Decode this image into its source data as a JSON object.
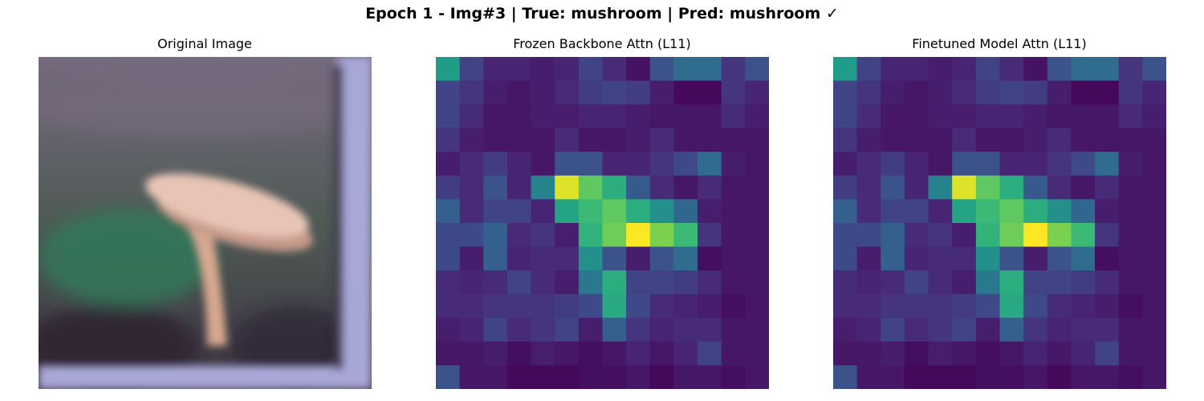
{
  "figure": {
    "suptitle": "Epoch 1 - Img#3 | True: mushroom | Pred: mushroom ✓"
  },
  "chart_data": [
    {
      "type": "image",
      "title": "Original Image",
      "axis": "off",
      "colors": {
        "background_top": "#766b7f",
        "background_mid": "#4f5a55",
        "background_bottom": "#3e3542",
        "frame": "#a8a8d8",
        "frame_edge": "#c0c0f0",
        "cap": "#e8c4b6",
        "cap_shadow": "#c79a8a",
        "stem": "#d8a890",
        "foliage": "#2f7a5a",
        "dark": "#2a2230"
      }
    },
    {
      "type": "heatmap",
      "title": "Frozen Backbone Attn (L11)",
      "colormap": "viridis",
      "axis": "off",
      "rows": 14,
      "cols": 14,
      "values": [
        [
          0.55,
          0.2,
          0.1,
          0.1,
          0.08,
          0.1,
          0.2,
          0.12,
          0.05,
          0.25,
          0.35,
          0.35,
          0.15,
          0.25
        ],
        [
          0.2,
          0.15,
          0.08,
          0.06,
          0.08,
          0.12,
          0.18,
          0.2,
          0.18,
          0.08,
          0.02,
          0.02,
          0.15,
          0.1
        ],
        [
          0.2,
          0.12,
          0.06,
          0.06,
          0.08,
          0.08,
          0.1,
          0.1,
          0.08,
          0.06,
          0.06,
          0.06,
          0.12,
          0.08
        ],
        [
          0.15,
          0.08,
          0.06,
          0.06,
          0.06,
          0.12,
          0.06,
          0.06,
          0.08,
          0.12,
          0.06,
          0.06,
          0.06,
          0.06
        ],
        [
          0.08,
          0.12,
          0.18,
          0.1,
          0.06,
          0.25,
          0.25,
          0.1,
          0.1,
          0.15,
          0.22,
          0.35,
          0.08,
          0.06
        ],
        [
          0.18,
          0.12,
          0.25,
          0.1,
          0.45,
          0.95,
          0.75,
          0.62,
          0.28,
          0.12,
          0.06,
          0.12,
          0.06,
          0.06
        ],
        [
          0.3,
          0.12,
          0.2,
          0.2,
          0.1,
          0.58,
          0.68,
          0.75,
          0.62,
          0.5,
          0.33,
          0.08,
          0.06,
          0.06
        ],
        [
          0.22,
          0.22,
          0.3,
          0.12,
          0.15,
          0.08,
          0.65,
          0.78,
          1.0,
          0.8,
          0.68,
          0.15,
          0.06,
          0.06
        ],
        [
          0.22,
          0.08,
          0.3,
          0.1,
          0.12,
          0.12,
          0.5,
          0.25,
          0.08,
          0.25,
          0.35,
          0.04,
          0.06,
          0.06
        ],
        [
          0.12,
          0.1,
          0.12,
          0.2,
          0.12,
          0.08,
          0.4,
          0.62,
          0.2,
          0.2,
          0.18,
          0.12,
          0.06,
          0.06
        ],
        [
          0.12,
          0.12,
          0.15,
          0.15,
          0.15,
          0.18,
          0.22,
          0.6,
          0.22,
          0.12,
          0.1,
          0.08,
          0.04,
          0.06
        ],
        [
          0.08,
          0.1,
          0.2,
          0.12,
          0.15,
          0.2,
          0.08,
          0.3,
          0.15,
          0.1,
          0.12,
          0.12,
          0.06,
          0.06
        ],
        [
          0.06,
          0.06,
          0.08,
          0.04,
          0.08,
          0.06,
          0.04,
          0.06,
          0.1,
          0.06,
          0.1,
          0.2,
          0.06,
          0.06
        ],
        [
          0.25,
          0.06,
          0.06,
          0.02,
          0.02,
          0.02,
          0.04,
          0.04,
          0.06,
          0.02,
          0.06,
          0.06,
          0.04,
          0.06
        ]
      ]
    },
    {
      "type": "heatmap",
      "title": "Finetuned Model Attn (L11)",
      "colormap": "viridis",
      "axis": "off",
      "rows": 14,
      "cols": 14,
      "values": [
        [
          0.55,
          0.2,
          0.1,
          0.1,
          0.08,
          0.1,
          0.2,
          0.12,
          0.05,
          0.25,
          0.35,
          0.35,
          0.15,
          0.25
        ],
        [
          0.2,
          0.15,
          0.08,
          0.06,
          0.08,
          0.12,
          0.18,
          0.2,
          0.18,
          0.08,
          0.02,
          0.02,
          0.15,
          0.1
        ],
        [
          0.2,
          0.12,
          0.06,
          0.06,
          0.08,
          0.08,
          0.1,
          0.1,
          0.08,
          0.06,
          0.06,
          0.06,
          0.12,
          0.08
        ],
        [
          0.15,
          0.08,
          0.06,
          0.06,
          0.06,
          0.12,
          0.06,
          0.06,
          0.08,
          0.12,
          0.06,
          0.06,
          0.06,
          0.06
        ],
        [
          0.08,
          0.12,
          0.18,
          0.1,
          0.06,
          0.25,
          0.25,
          0.1,
          0.1,
          0.15,
          0.22,
          0.35,
          0.08,
          0.06
        ],
        [
          0.18,
          0.12,
          0.25,
          0.1,
          0.45,
          0.95,
          0.75,
          0.62,
          0.28,
          0.12,
          0.06,
          0.12,
          0.06,
          0.06
        ],
        [
          0.3,
          0.12,
          0.2,
          0.2,
          0.1,
          0.58,
          0.68,
          0.75,
          0.62,
          0.5,
          0.33,
          0.08,
          0.06,
          0.06
        ],
        [
          0.22,
          0.22,
          0.3,
          0.12,
          0.15,
          0.08,
          0.65,
          0.78,
          1.0,
          0.8,
          0.68,
          0.15,
          0.06,
          0.06
        ],
        [
          0.22,
          0.08,
          0.3,
          0.1,
          0.12,
          0.12,
          0.5,
          0.25,
          0.08,
          0.25,
          0.35,
          0.04,
          0.06,
          0.06
        ],
        [
          0.12,
          0.1,
          0.12,
          0.2,
          0.12,
          0.08,
          0.4,
          0.62,
          0.2,
          0.2,
          0.18,
          0.12,
          0.06,
          0.06
        ],
        [
          0.12,
          0.12,
          0.15,
          0.15,
          0.15,
          0.18,
          0.22,
          0.6,
          0.22,
          0.12,
          0.1,
          0.08,
          0.04,
          0.06
        ],
        [
          0.08,
          0.1,
          0.2,
          0.12,
          0.15,
          0.2,
          0.08,
          0.3,
          0.15,
          0.1,
          0.12,
          0.12,
          0.06,
          0.06
        ],
        [
          0.06,
          0.06,
          0.08,
          0.04,
          0.08,
          0.06,
          0.04,
          0.06,
          0.1,
          0.06,
          0.1,
          0.2,
          0.06,
          0.06
        ],
        [
          0.25,
          0.06,
          0.06,
          0.02,
          0.02,
          0.02,
          0.04,
          0.04,
          0.06,
          0.02,
          0.06,
          0.06,
          0.04,
          0.06
        ]
      ]
    }
  ]
}
